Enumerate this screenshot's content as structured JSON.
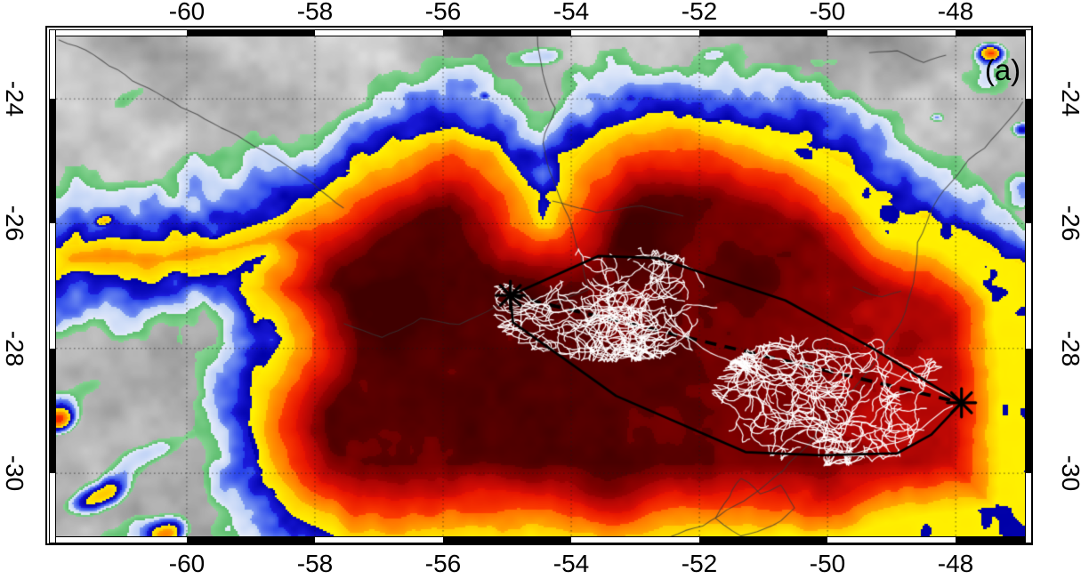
{
  "panel_label": "(a)",
  "axes": {
    "lon": {
      "ticks": [
        -60,
        -58,
        -56,
        -54,
        -52,
        -50,
        -48
      ],
      "labels": [
        "-60",
        "-58",
        "-56",
        "-54",
        "-52",
        "-50",
        "-48"
      ]
    },
    "lat": {
      "ticks": [
        -24,
        -26,
        -28,
        -30
      ],
      "labels": [
        "-24",
        "-26",
        "-28",
        "-30"
      ]
    },
    "grid_interval_deg": 2
  },
  "styles": {
    "background": "#FFFFFF",
    "frame": "#000000",
    "label_color": "#000000",
    "grid_color": "rgba(25,25,25,0.65)",
    "geo_border_color": "rgba(55,55,55,0.75)",
    "lightning_color": "rgba(255,255,255,0.93)",
    "track_color": "#000000"
  },
  "chart_data": {
    "type": "map",
    "subject": "infrared satellite brightness-temperature map with storm track, flash traces, convex hull and trajectory",
    "lon_range": [
      -62.04,
      -46.92
    ],
    "lat_range": [
      -31.01,
      -23.0
    ],
    "xticks": [
      -60,
      -58,
      -56,
      -54,
      -52,
      -50,
      -48
    ],
    "yticks": [
      -24,
      -26,
      -28,
      -30
    ],
    "grid": {
      "interval": 2,
      "style": "dotted"
    },
    "frame": {
      "black_segments_lon": [
        [
          -60,
          -58
        ],
        [
          -56,
          -54
        ],
        [
          -52,
          -50
        ],
        [
          -48,
          -46.92
        ]
      ],
      "black_segments_lat": [
        [
          -24,
          -26
        ],
        [
          -28,
          -30
        ]
      ]
    },
    "noise_seed": 7,
    "terrain": {
      "light": 224,
      "dark": 136
    },
    "color_bands": [
      [
        0.295,
        0.355,
        "#86D392",
        "#5FBF70"
      ],
      [
        0.355,
        0.425,
        "#E4EBFA",
        "#BCD0F5"
      ],
      [
        0.425,
        0.505,
        "#7A97F3",
        "#2743EA"
      ],
      [
        0.505,
        0.575,
        "#1B1BDC",
        "#0000A8"
      ],
      [
        0.575,
        0.64,
        "#FFF200",
        "#FFC900"
      ],
      [
        0.64,
        0.715,
        "#FFA600",
        "#FF6C00"
      ],
      [
        0.715,
        0.79,
        "#FC3D00",
        "#E61300"
      ],
      [
        0.79,
        0.86,
        "#DA0E04",
        "#A60404"
      ],
      [
        0.86,
        0.925,
        "#970101",
        "#6E0000"
      ],
      [
        0.925,
        1.0,
        "#5B0000",
        "#390000"
      ]
    ],
    "storm_outline": [
      [
        -62.05,
        -26.4
      ],
      [
        -61.2,
        -26.22
      ],
      [
        -60.3,
        -26.3
      ],
      [
        -59.4,
        -26.18
      ],
      [
        -58.6,
        -25.9
      ],
      [
        -58.0,
        -25.55
      ],
      [
        -57.25,
        -24.95
      ],
      [
        -56.55,
        -24.62
      ],
      [
        -55.8,
        -24.45
      ],
      [
        -55.15,
        -24.72
      ],
      [
        -54.7,
        -25.3
      ],
      [
        -54.45,
        -25.95
      ],
      [
        -54.1,
        -25.1
      ],
      [
        -53.55,
        -24.5
      ],
      [
        -52.85,
        -24.28
      ],
      [
        -51.7,
        -24.32
      ],
      [
        -50.55,
        -24.62
      ],
      [
        -49.6,
        -25.12
      ],
      [
        -48.85,
        -25.82
      ],
      [
        -48.05,
        -26.02
      ],
      [
        -47.3,
        -26.52
      ],
      [
        -46.85,
        -26.7
      ],
      [
        -46.85,
        -31.1
      ],
      [
        -57.5,
        -31.1
      ],
      [
        -58.35,
        -30.68
      ],
      [
        -58.8,
        -30.15
      ],
      [
        -59.05,
        -29.35
      ],
      [
        -58.95,
        -28.55
      ],
      [
        -58.5,
        -27.85
      ],
      [
        -59.2,
        -27.05
      ],
      [
        -58.75,
        -26.5
      ],
      [
        -59.7,
        -26.7
      ],
      [
        -60.6,
        -26.9
      ],
      [
        -61.5,
        -26.75
      ],
      [
        -62.05,
        -26.85
      ]
    ],
    "storm_cores": [
      [
        -56.75,
        -27.4,
        0.95,
        0.105
      ],
      [
        -54.6,
        -26.8,
        1.05,
        0.09
      ],
      [
        -52.95,
        -26.25,
        0.8,
        0.085
      ],
      [
        -51.2,
        -26.95,
        0.95,
        0.05
      ],
      [
        -53.35,
        -30.25,
        1.0,
        0.07
      ],
      [
        -50.0,
        -30.6,
        0.95,
        0.085
      ],
      [
        -55.6,
        -28.9,
        1.3,
        0.04
      ]
    ],
    "east_taper": {
      "lon_start": -52.2,
      "lon_span": 5.2,
      "amount": 0.19
    },
    "cell_blobs": [
      [
        -55.35,
        -23.95,
        0.3,
        0.22,
        0,
        0.52
      ],
      [
        -55.02,
        -24.35,
        0.22,
        0.18,
        0,
        0.5
      ],
      [
        -54.65,
        -24.68,
        0.2,
        0.16,
        0,
        0.46
      ],
      [
        -56.35,
        -24.2,
        0.17,
        0.13,
        0,
        0.4
      ],
      [
        -47.45,
        -23.25,
        0.45,
        0.3,
        0,
        0.52
      ],
      [
        -46.98,
        -24.5,
        0.42,
        0.3,
        0,
        0.56
      ],
      [
        -48.3,
        -24.3,
        0.3,
        0.2,
        0,
        0.44
      ],
      [
        -61.3,
        -25.95,
        0.6,
        0.33,
        -15,
        0.62
      ],
      [
        -61.95,
        -29.15,
        0.6,
        0.4,
        -20,
        0.6
      ],
      [
        -61.4,
        -30.4,
        1.1,
        0.45,
        -22,
        0.62
      ],
      [
        -60.3,
        -31.0,
        0.75,
        0.4,
        -20,
        0.55
      ],
      [
        -48.7,
        -25.45,
        2.6,
        1.15,
        8,
        0.42
      ],
      [
        -47.6,
        -23.7,
        1.6,
        0.85,
        0,
        0.38
      ],
      [
        -49.9,
        -23.35,
        1.3,
        0.6,
        -5,
        0.36
      ],
      [
        -54.6,
        -23.35,
        1.4,
        0.5,
        -5,
        0.38
      ],
      [
        -52.95,
        -23.8,
        1.2,
        0.45,
        -10,
        0.38
      ],
      [
        -51.8,
        -23.3,
        1.1,
        0.45,
        -8,
        0.34
      ],
      [
        -60.9,
        -23.95,
        1.7,
        0.5,
        -35,
        0.32
      ],
      [
        -61.6,
        -28.65,
        2.0,
        0.5,
        -22,
        0.38
      ],
      [
        -60.4,
        -29.6,
        2.3,
        0.55,
        -22,
        0.4
      ],
      [
        -60.9,
        -30.9,
        1.9,
        0.5,
        -18,
        0.38
      ],
      [
        -61.6,
        -26.6,
        1.2,
        0.6,
        -25,
        0.32
      ],
      [
        -46.9,
        -25.5,
        0.8,
        0.8,
        0,
        0.4
      ]
    ],
    "track": {
      "hull_lonlat": [
        [
          -54.95,
          -27.15
        ],
        [
          -53.58,
          -26.52
        ],
        [
          -52.66,
          -26.55
        ],
        [
          -50.66,
          -27.23
        ],
        [
          -49.29,
          -28.0
        ],
        [
          -47.91,
          -28.87
        ],
        [
          -48.38,
          -29.38
        ],
        [
          -48.91,
          -29.68
        ],
        [
          -50.1,
          -29.71
        ],
        [
          -51.28,
          -29.66
        ],
        [
          -53.3,
          -28.76
        ],
        [
          -54.91,
          -27.58
        ]
      ],
      "start_marker": [
        -54.95,
        -27.15
      ],
      "end_marker": [
        -47.91,
        -28.87
      ],
      "dashed_line": [
        [
          -54.95,
          -27.15
        ],
        [
          -47.91,
          -28.87
        ]
      ]
    },
    "lightning": {
      "clusters": [
        {
          "center": [
            -53.35,
            -27.3
          ],
          "rx": 1.55,
          "ry": 0.72,
          "branches": 16,
          "seed": 101
        },
        {
          "center": [
            -49.9,
            -28.8
          ],
          "rx": 1.5,
          "ry": 0.85,
          "branches": 16,
          "seed": 202
        }
      ],
      "connectors": [
        [
          [
            -54.9,
            -27.2
          ],
          [
            -54.25,
            -27.42
          ],
          [
            -53.7,
            -27.32
          ]
        ],
        [
          [
            -52.55,
            -27.5
          ],
          [
            -51.95,
            -28.0
          ],
          [
            -51.35,
            -28.3
          ],
          [
            -50.9,
            -28.5
          ]
        ],
        [
          [
            -49.25,
            -28.3
          ],
          [
            -48.6,
            -28.55
          ],
          [
            -48.0,
            -28.82
          ]
        ],
        [
          [
            -50.55,
            -29.45
          ],
          [
            -49.7,
            -29.7
          ],
          [
            -48.75,
            -29.45
          ],
          [
            -48.05,
            -28.92
          ]
        ]
      ]
    },
    "geo_borders": [
      {
        "name": "paraguay-river",
        "points": [
          [
            -62.0,
            -23.05
          ],
          [
            -61.45,
            -23.3
          ],
          [
            -60.85,
            -23.7
          ],
          [
            -60.2,
            -24.05
          ],
          [
            -59.6,
            -24.4
          ],
          [
            -58.95,
            -24.75
          ],
          [
            -58.4,
            -25.1
          ],
          [
            -57.9,
            -25.45
          ],
          [
            -57.55,
            -25.75
          ]
        ]
      },
      {
        "name": "parana-river",
        "points": [
          [
            -54.55,
            -23.0
          ],
          [
            -54.45,
            -23.6
          ],
          [
            -54.25,
            -24.15
          ],
          [
            -54.45,
            -24.7
          ],
          [
            -54.3,
            -25.3
          ],
          [
            -54.05,
            -25.9
          ],
          [
            -53.85,
            -26.5
          ],
          [
            -53.72,
            -27.05
          ]
        ]
      },
      {
        "name": "iguacu-river",
        "points": [
          [
            -54.3,
            -25.65
          ],
          [
            -53.6,
            -25.82
          ],
          [
            -52.9,
            -25.72
          ],
          [
            -52.25,
            -25.88
          ]
        ]
      },
      {
        "name": "uruguay-river",
        "points": [
          [
            -53.72,
            -27.05
          ],
          [
            -54.35,
            -27.35
          ],
          [
            -55.05,
            -27.28
          ],
          [
            -55.75,
            -27.62
          ],
          [
            -56.35,
            -27.52
          ],
          [
            -56.95,
            -27.82
          ],
          [
            -57.55,
            -27.6
          ]
        ]
      },
      {
        "name": "coastline",
        "points": [
          [
            -46.95,
            -24.05
          ],
          [
            -47.35,
            -24.55
          ],
          [
            -47.9,
            -25.1
          ],
          [
            -48.35,
            -25.7
          ],
          [
            -48.6,
            -26.3
          ],
          [
            -48.65,
            -26.95
          ],
          [
            -48.85,
            -27.55
          ],
          [
            -49.25,
            -28.2
          ],
          [
            -49.75,
            -28.85
          ],
          [
            -50.25,
            -29.45
          ],
          [
            -50.7,
            -29.95
          ],
          [
            -51.3,
            -30.45
          ],
          [
            -51.95,
            -30.85
          ],
          [
            -52.6,
            -31.05
          ]
        ]
      },
      {
        "name": "lagoa-dos-patos",
        "points": [
          [
            -51.35,
            -30.08
          ],
          [
            -51.05,
            -30.33
          ],
          [
            -50.75,
            -30.2
          ],
          [
            -50.52,
            -30.55
          ],
          [
            -50.85,
            -30.85
          ],
          [
            -51.35,
            -31.0
          ],
          [
            -51.75,
            -30.72
          ],
          [
            -51.52,
            -30.38
          ],
          [
            -51.35,
            -30.08
          ]
        ]
      },
      {
        "name": "ne-river",
        "points": [
          [
            -49.35,
            -23.28
          ],
          [
            -48.9,
            -23.22
          ],
          [
            -48.5,
            -23.42
          ],
          [
            -48.15,
            -23.3
          ]
        ]
      },
      {
        "name": "sc-river",
        "points": [
          [
            -49.6,
            -27.0
          ],
          [
            -49.15,
            -27.18
          ],
          [
            -48.85,
            -27.08
          ]
        ]
      }
    ]
  }
}
